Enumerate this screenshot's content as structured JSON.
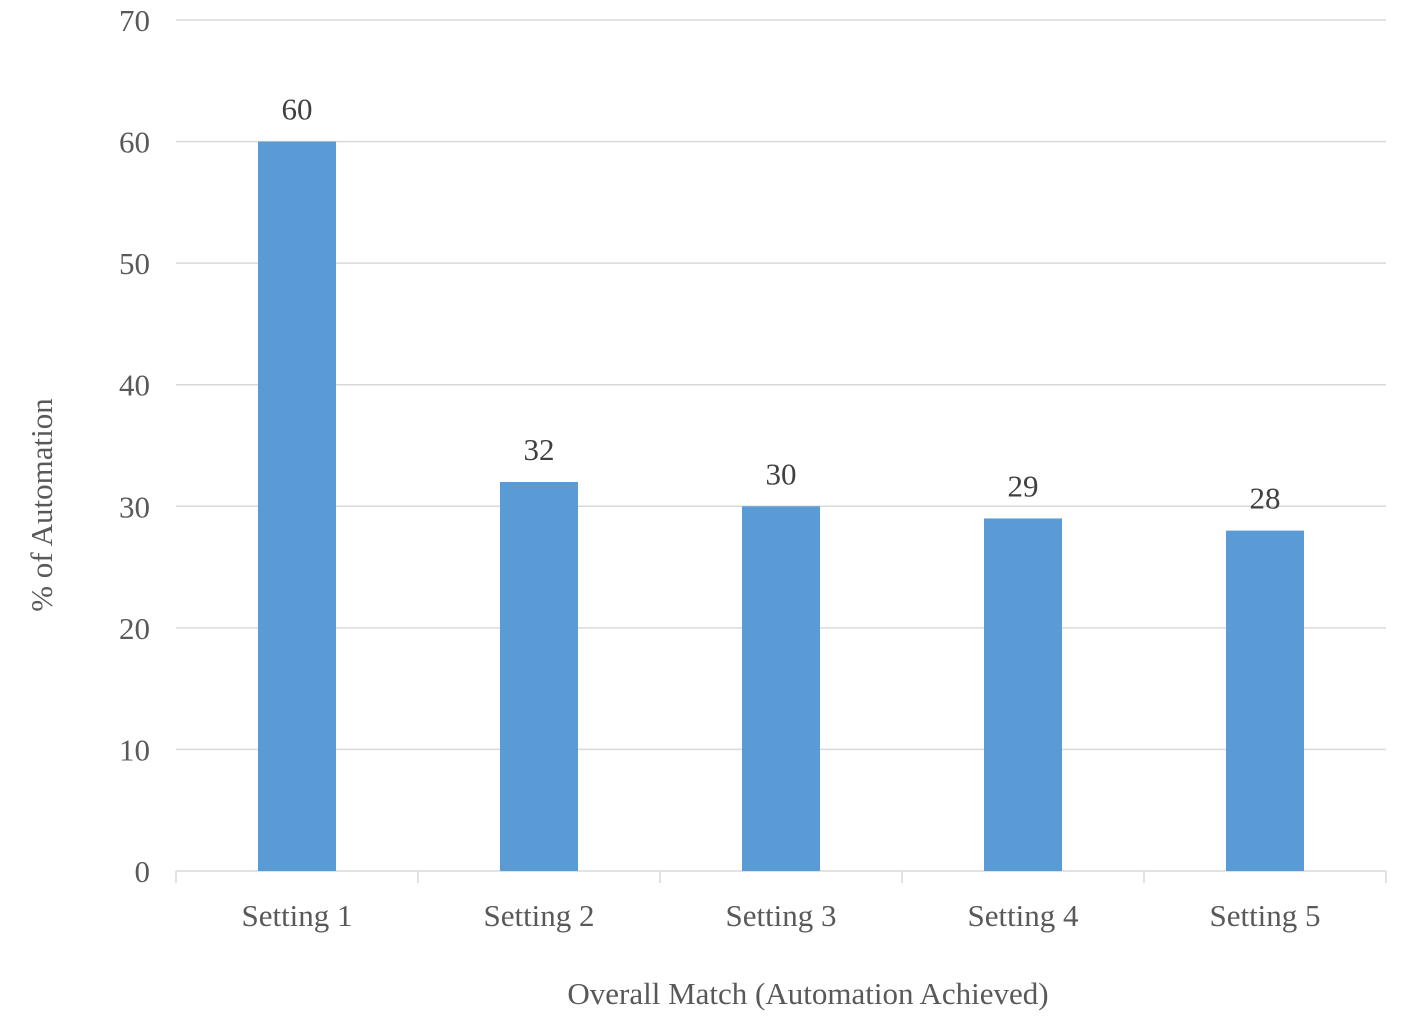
{
  "chart_data": {
    "type": "bar",
    "categories": [
      "Setting 1",
      "Setting 2",
      "Setting 3",
      "Setting 4",
      "Setting 5"
    ],
    "values": [
      60,
      32,
      30,
      29,
      28
    ],
    "data_labels": [
      "60",
      "32",
      "30",
      "29",
      "28"
    ],
    "title": "",
    "xlabel": "Overall Match (Automation Achieved)",
    "ylabel": "% of Automation",
    "ylim": [
      0,
      70
    ],
    "yticks": [
      0,
      10,
      20,
      30,
      40,
      50,
      60,
      70
    ],
    "ytick_labels": [
      "0",
      "10",
      "20",
      "30",
      "40",
      "50",
      "60",
      "70"
    ],
    "grid": true,
    "legend": "none",
    "colors": {
      "bar": "#5b9bd5",
      "grid": "#d9d9d9",
      "tick_text": "#595959",
      "label_text": "#404040"
    }
  }
}
